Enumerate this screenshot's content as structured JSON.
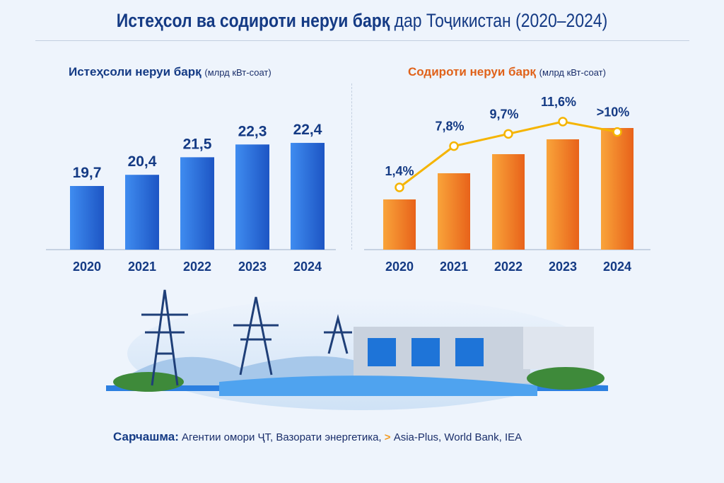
{
  "title_bold": "Истеҳсол ва содироти неруи барқ",
  "title_rest": "дар Тоҷикистан (2020–2024)",
  "chart_data": [
    {
      "type": "bar",
      "title": "Истеҳсоли неруи барқ",
      "unit": "(млрд кВт-соат)",
      "categories": [
        "2020",
        "2021",
        "2022",
        "2023",
        "2024"
      ],
      "values": [
        19.7,
        20.4,
        21.5,
        22.3,
        22.4
      ],
      "labels": [
        "19,7",
        "20,4",
        "21,5",
        "22,3",
        "22,4"
      ],
      "color": "#2a6fdc"
    },
    {
      "type": "bar+line",
      "title": "Содироти неруи барқ",
      "unit": "(млрд кВт-соат)",
      "categories": [
        "2020",
        "2021",
        "2022",
        "2023",
        "2024"
      ],
      "bar_values_relative": [
        71,
        108,
        135,
        156,
        172
      ],
      "line_values_percent": [
        1.4,
        7.8,
        9.7,
        11.6,
        10
      ],
      "labels": [
        "1,4%",
        "7,8%",
        "9,7%",
        "11,6%",
        ">10%"
      ],
      "color": "#f07a22",
      "line_color": "#f5b400"
    }
  ],
  "source": {
    "label": "Сарчашма:",
    "text1": "Агентии омори ҶТ, Вазорати энергетика,",
    "arrow": ">",
    "text2": "Asia-Plus, World Bank, IEA"
  }
}
